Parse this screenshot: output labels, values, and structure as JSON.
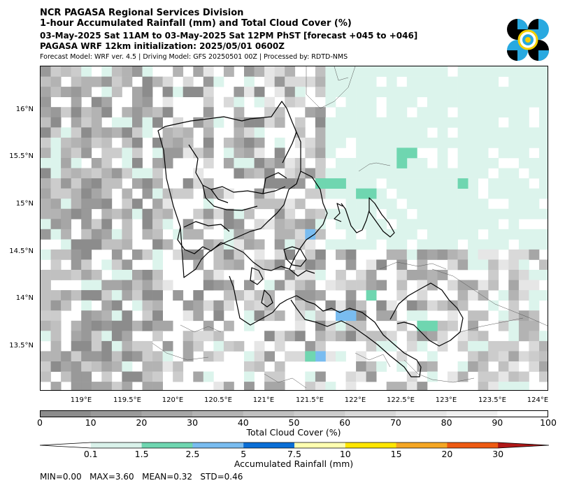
{
  "header": {
    "title1": "NCR PAGASA Regional Services Division",
    "title2": "1-hour Accumulated Rainfall (mm) and Total Cloud Cover (%)",
    "line3": "03-May-2025 Sat 11AM to 03-May-2025 Sat 12PM PhST [forecast +045 to +046]",
    "line4": "PAGASA WRF 12km initialization: 2025/05/01 0600Z",
    "line5": "Forecast Model: WRF ver. 4.5 | Driving Model: GFS 20250501 00Z | Processed by: RDTD-NMS"
  },
  "logo": {
    "name": "pagasa-logo",
    "colors": [
      "#000000",
      "#29a9e0",
      "#f5d000"
    ]
  },
  "map": {
    "lat_labels": [
      "16°N",
      "15.5°N",
      "15°N",
      "14.5°N",
      "14°N",
      "13.5°N"
    ],
    "lon_labels": [
      "119°E",
      "119.5°E",
      "120°E",
      "120.5°E",
      "121°E",
      "121.5°E",
      "122°E",
      "122.5°E",
      "123°E",
      "123.5°E",
      "124°E"
    ]
  },
  "cloud_colorbar": {
    "ticks": [
      "0",
      "10",
      "20",
      "30",
      "40",
      "50",
      "60",
      "70",
      "80",
      "90",
      "100"
    ],
    "colors": [
      "#8c8c8c",
      "#999999",
      "#a6a6a6",
      "#b3b3b3",
      "#c0c0c0",
      "#cccccc",
      "#d9d9d9",
      "#e6e6e6",
      "#f0f0f0",
      "#ffffff"
    ],
    "label": "Total Cloud Cover (%)"
  },
  "rain_colorbar": {
    "ticks": [
      "0.1",
      "1.5",
      "2.5",
      "5",
      "7.5",
      "10",
      "15",
      "20",
      "30"
    ],
    "colors": [
      "#ffffff",
      "#d9f2ea",
      "#6fd6b0",
      "#79bcf0",
      "#0a6ed6",
      "#ffffb0",
      "#ffe600",
      "#f5a623",
      "#ee5a12",
      "#b01818"
    ],
    "label": "Accumulated Rainfall (mm)"
  },
  "stats": "MIN=0.00   MAX=3.60   MEAN=0.32   STD=0.46"
}
